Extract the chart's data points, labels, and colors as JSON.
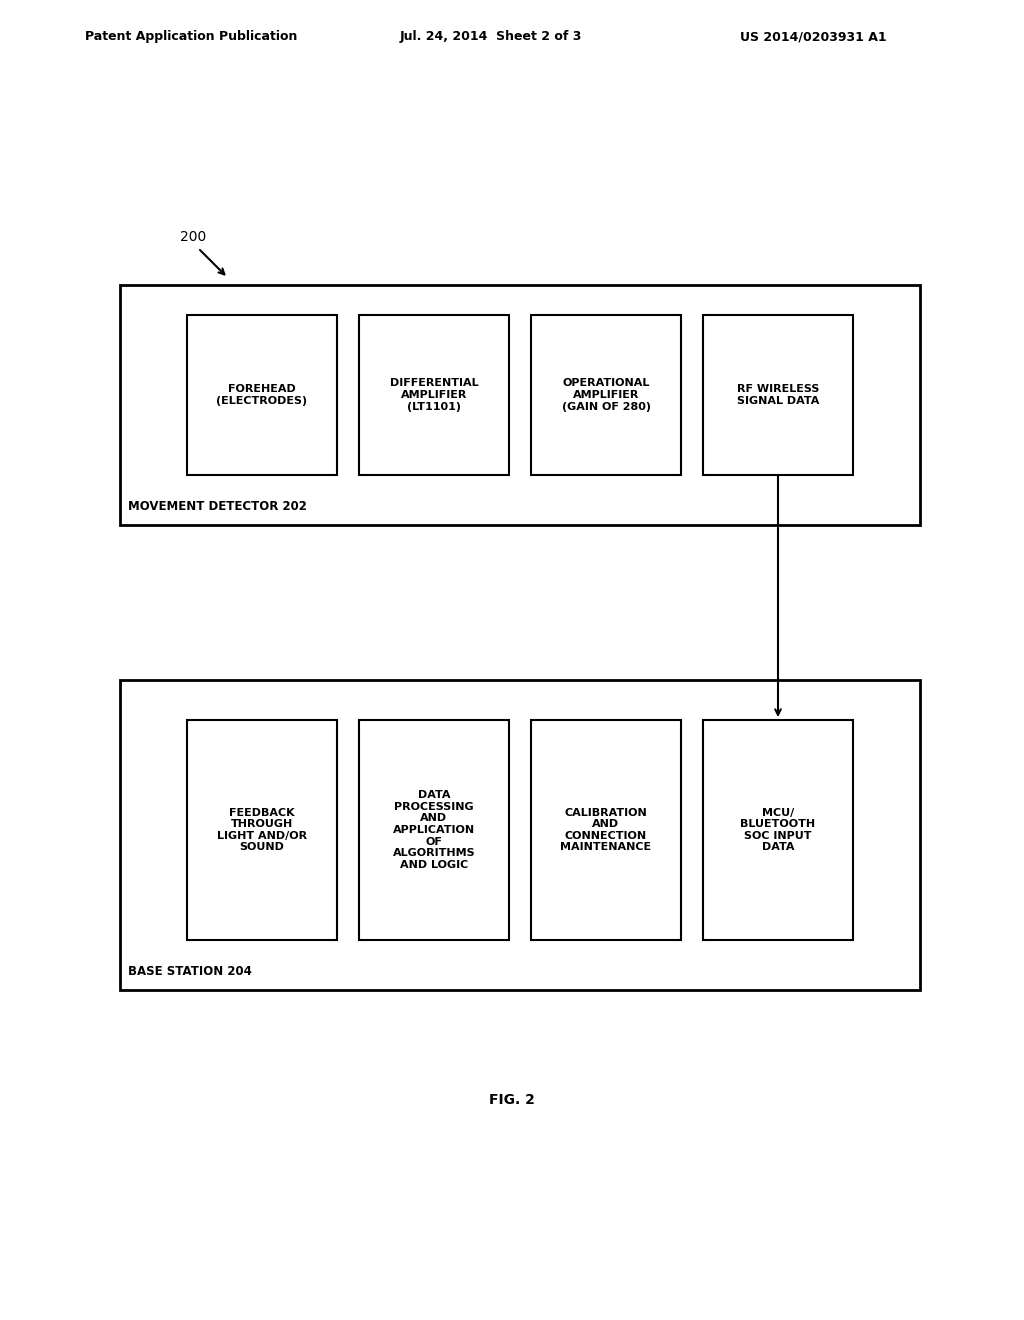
{
  "bg_color": "#ffffff",
  "header_left": "Patent Application Publication",
  "header_mid": "Jul. 24, 2014  Sheet 2 of 3",
  "header_right": "US 2014/0203931 A1",
  "label_200": "200",
  "fig_label": "FIG. 2",
  "movement_detector_label": "MOVEMENT DETECTOR 202",
  "base_station_label": "BASE STATION 204",
  "top_boxes": [
    "FOREHEAD\n(ELECTRODES)",
    "DIFFERENTIAL\nAMPLIFIER\n(LT1101)",
    "OPERATIONAL\nAMPLIFIER\n(GAIN OF 280)",
    "RF WIRELESS\nSIGNAL DATA"
  ],
  "bottom_boxes": [
    "FEEDBACK\nTHROUGH\nLIGHT AND/OR\nSOUND",
    "DATA\nPROCESSING\nAND\nAPPLICATION\nOF\nALGORITHMS\nAND LOGIC",
    "CALIBRATION\nAND\nCONNECTION\nMAINTENANCE",
    "MCU/\nBLUETOOTH\nSOC INPUT\nDATA"
  ]
}
